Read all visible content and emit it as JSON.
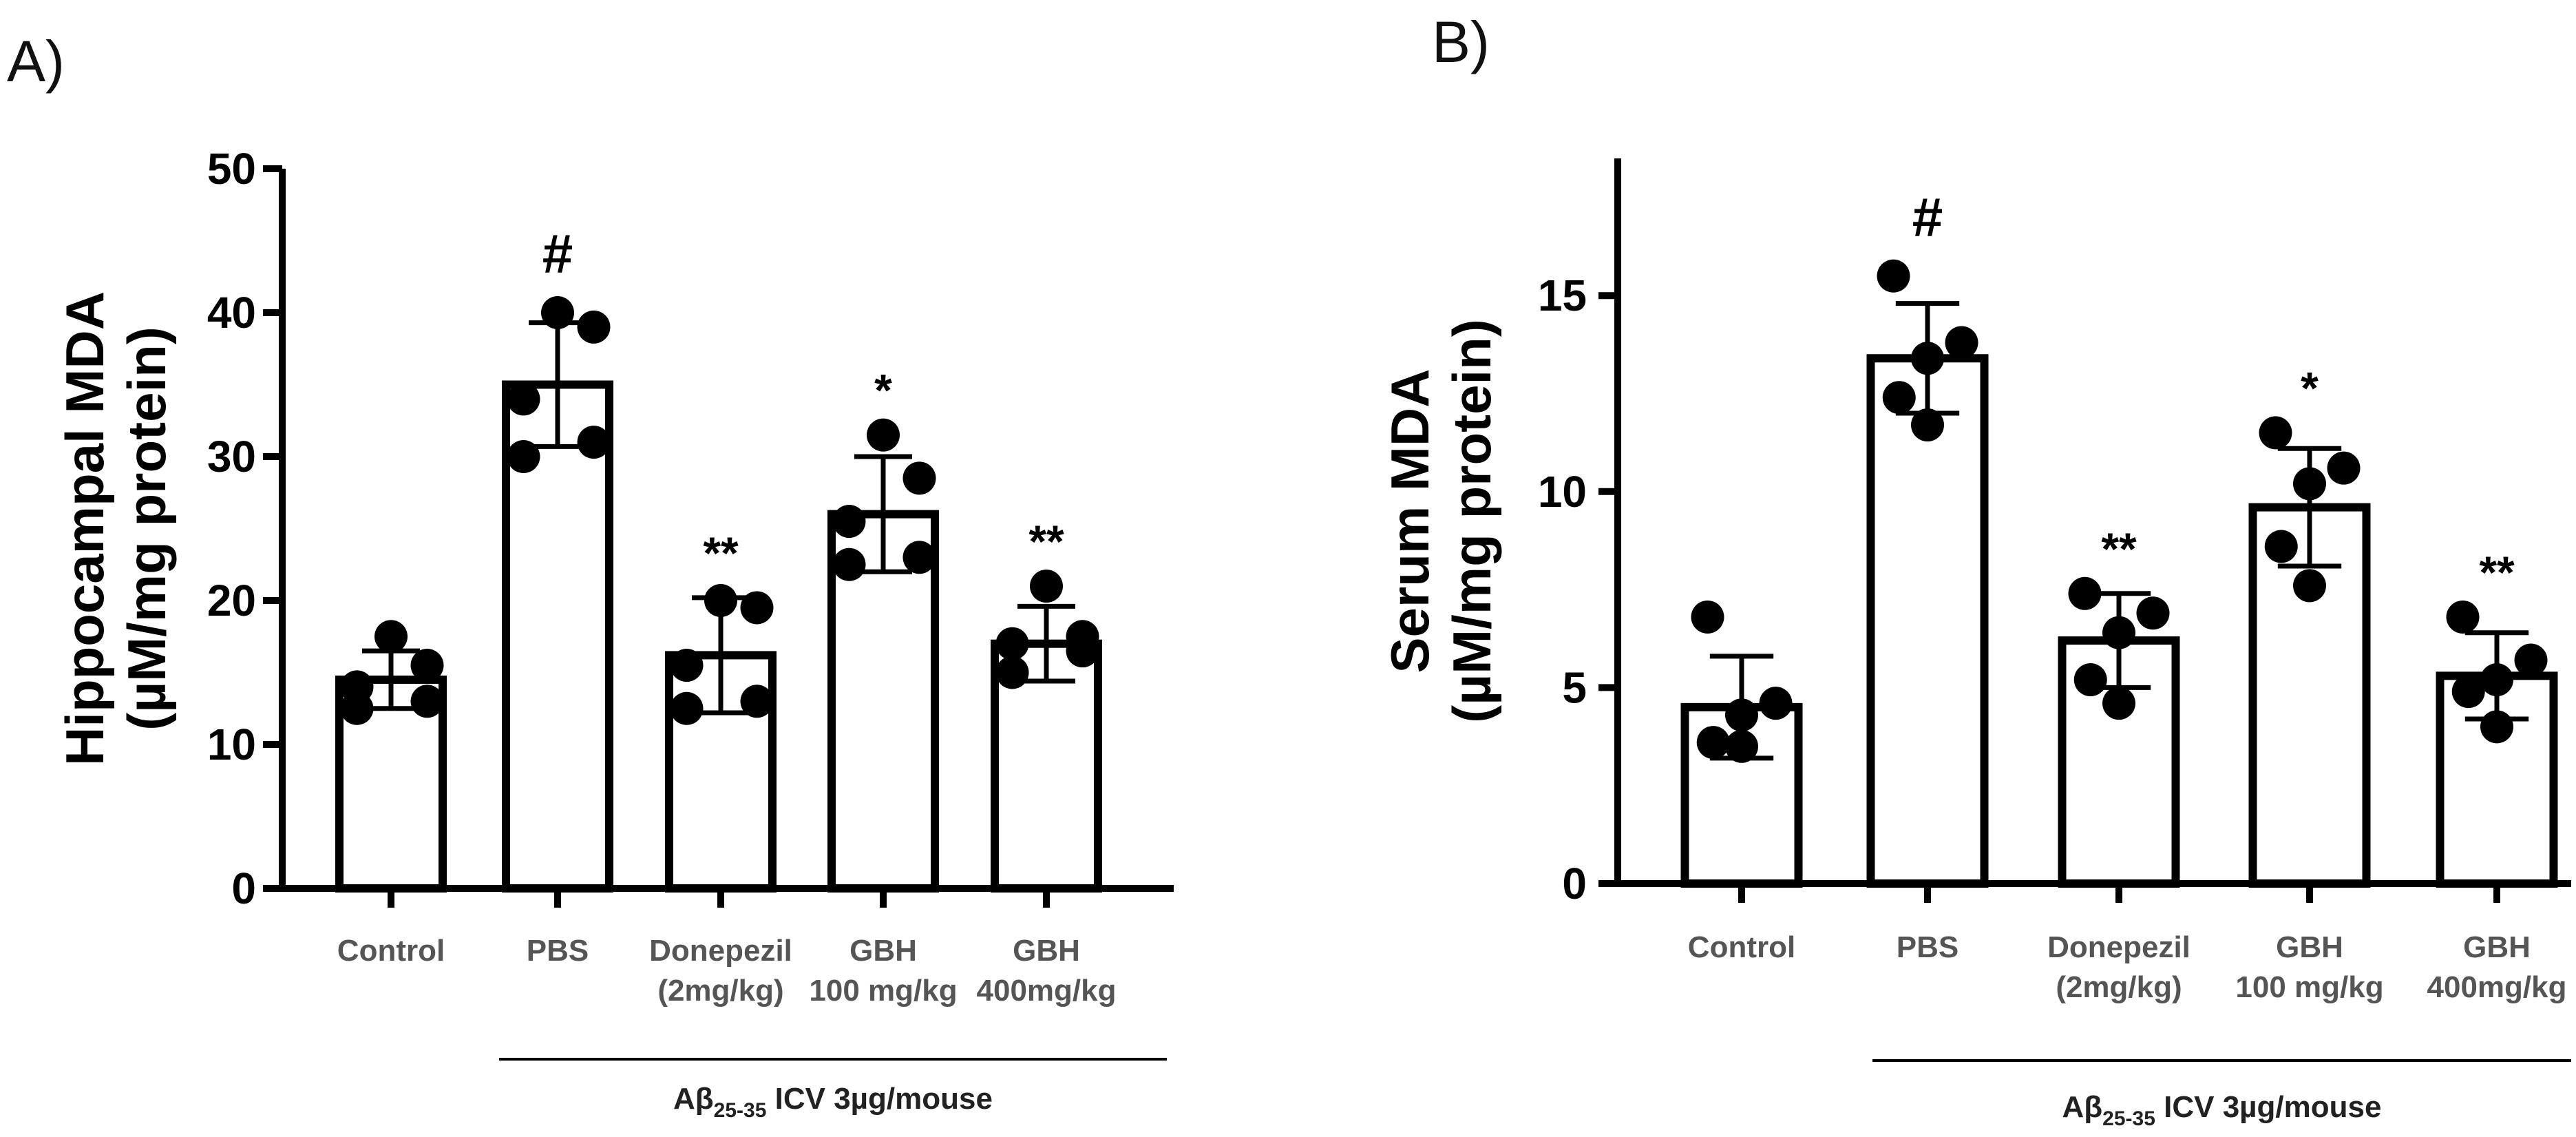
{
  "chart_data": [
    {
      "panel": "A)",
      "type": "bar",
      "ylabel_lines": [
        "Hippocampal MDA",
        "(µM/mg protein)"
      ],
      "ylim": [
        0,
        50
      ],
      "yticks": [
        0,
        10,
        20,
        30,
        40,
        50
      ],
      "categories": [
        {
          "lines": [
            "Control"
          ]
        },
        {
          "lines": [
            "PBS"
          ]
        },
        {
          "lines": [
            "Donepezil",
            "(2mg/kg)"
          ]
        },
        {
          "lines": [
            "GBH",
            "100 mg/kg"
          ]
        },
        {
          "lines": [
            "GBH",
            "400mg/kg"
          ]
        }
      ],
      "means": [
        14.5,
        35.0,
        16.2,
        26.0,
        17.0
      ],
      "sd": [
        2.0,
        4.3,
        4.0,
        4.0,
        2.6
      ],
      "points": [
        [
          17.5,
          15.5,
          14.0,
          13.0,
          12.5
        ],
        [
          40.0,
          39.0,
          34.0,
          31.0,
          30.0
        ],
        [
          20.0,
          19.5,
          15.5,
          13.0,
          12.5
        ],
        [
          31.5,
          28.5,
          25.5,
          23.0,
          22.5
        ],
        [
          21.0,
          17.5,
          17.0,
          16.5,
          15.0
        ]
      ],
      "significance": [
        "",
        "#",
        "**",
        "*",
        "**"
      ],
      "group_label": {
        "prefix": "Aβ",
        "subscript": "25-35",
        "suffix": " ICV 3µg/mouse"
      }
    },
    {
      "panel": "B)",
      "type": "bar",
      "ylabel_lines": [
        "Serum MDA",
        "(µM/mg protein)"
      ],
      "ylim": [
        0,
        18.5
      ],
      "yticks": [
        0,
        5,
        10,
        15
      ],
      "categories": [
        {
          "lines": [
            "Control"
          ]
        },
        {
          "lines": [
            "PBS"
          ]
        },
        {
          "lines": [
            "Donepezil",
            "(2mg/kg)"
          ]
        },
        {
          "lines": [
            "GBH",
            "100 mg/kg"
          ]
        },
        {
          "lines": [
            "GBH",
            "400mg/kg"
          ]
        }
      ],
      "means": [
        4.5,
        13.4,
        6.2,
        9.6,
        5.3
      ],
      "sd": [
        1.3,
        1.4,
        1.2,
        1.5,
        1.1
      ],
      "points": [
        [
          6.8,
          4.6,
          4.3,
          3.6,
          3.5
        ],
        [
          15.5,
          13.8,
          13.4,
          12.4,
          11.7
        ],
        [
          7.4,
          6.9,
          6.4,
          5.2,
          4.6
        ],
        [
          11.5,
          10.6,
          10.2,
          8.6,
          7.6
        ],
        [
          6.8,
          5.7,
          5.2,
          4.9,
          4.0
        ]
      ],
      "significance": [
        "",
        "#",
        "**",
        "*",
        "**"
      ],
      "group_label": {
        "prefix": "Aβ",
        "subscript": "25-35",
        "suffix": " ICV 3µg/mouse"
      }
    }
  ]
}
